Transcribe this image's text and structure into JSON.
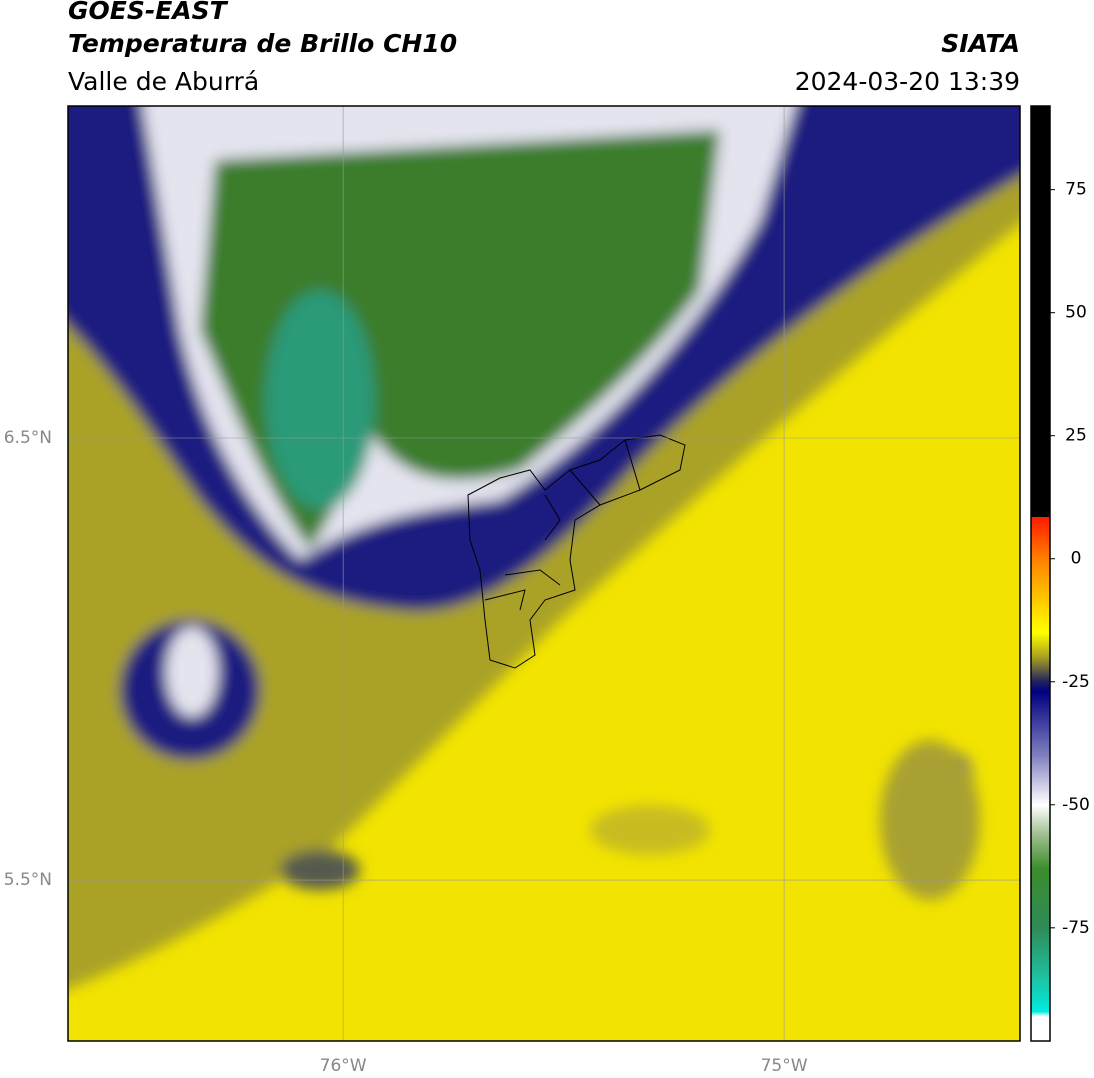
{
  "header": {
    "title": "GOES-EAST",
    "subtitle": "Temperatura de Brillo CH10",
    "region": "Valle de Aburrá",
    "source": "SIATA",
    "datetime": "2024-03-20 13:39"
  },
  "map": {
    "xlim": [
      -76.624,
      -74.465
    ],
    "ylim": [
      5.136,
      7.251
    ],
    "xticks": [
      {
        "value": -76,
        "label": "76°W"
      },
      {
        "value": -75,
        "label": "75°W"
      }
    ],
    "yticks": [
      {
        "value": 6.5,
        "label": "6.5°N"
      },
      {
        "value": 5.5,
        "label": "5.5°N"
      }
    ],
    "grid": true
  },
  "colorbar": {
    "lim": [
      -98,
      92
    ],
    "ticks": [
      75,
      50,
      25,
      0,
      -25,
      -50,
      -75
    ],
    "stops": [
      [
        92,
        "#000000"
      ],
      [
        8.5,
        "#000000"
      ],
      [
        8.5,
        "#ff1a00"
      ],
      [
        0,
        "#ff8000"
      ],
      [
        -10,
        "#ffd800"
      ],
      [
        -15,
        "#ffff00"
      ],
      [
        -20,
        "#a8a020"
      ],
      [
        -25,
        "#202060"
      ],
      [
        -27,
        "#000080"
      ],
      [
        -40,
        "#8080c0"
      ],
      [
        -50,
        "#ffffff"
      ],
      [
        -56,
        "#a0c090"
      ],
      [
        -63,
        "#3c8c2c"
      ],
      [
        -75,
        "#2e8b57"
      ],
      [
        -85,
        "#20c0a0"
      ],
      [
        -92,
        "#00ebe0"
      ],
      [
        -93,
        "#ffffff"
      ],
      [
        -98,
        "#ffffff"
      ]
    ]
  }
}
